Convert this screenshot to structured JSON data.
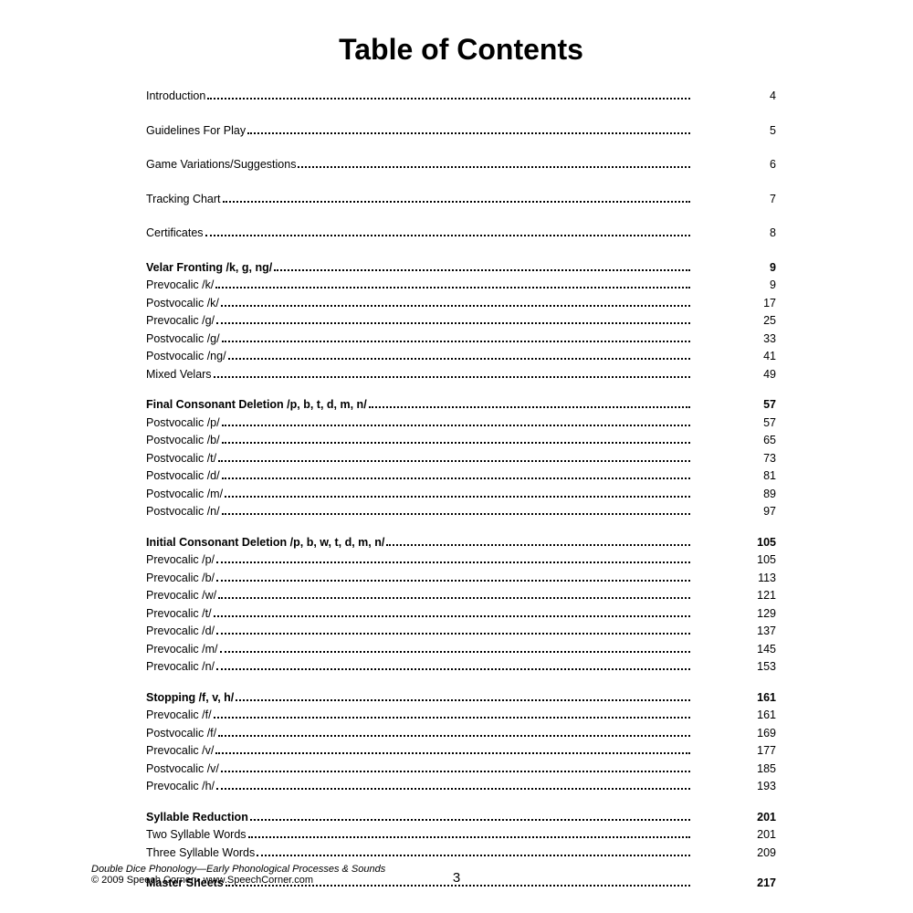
{
  "title": "Table of Contents",
  "sections": [
    {
      "items": [
        {
          "label": "Introduction",
          "page": "4",
          "bold": false,
          "spaced": true
        }
      ]
    },
    {
      "items": [
        {
          "label": "Guidelines For Play",
          "page": "5",
          "bold": false,
          "spaced": true
        }
      ]
    },
    {
      "items": [
        {
          "label": "Game Variations/Suggestions",
          "page": "6",
          "bold": false,
          "spaced": true
        }
      ]
    },
    {
      "items": [
        {
          "label": "Tracking Chart",
          "page": "7",
          "bold": false,
          "spaced": true
        }
      ]
    },
    {
      "items": [
        {
          "label": "Certificates",
          "page": "8",
          "bold": false,
          "spaced": true
        }
      ]
    },
    {
      "items": [
        {
          "label": "Velar Fronting /k, g, ng/",
          "page": "9",
          "bold": true
        },
        {
          "label": "Prevocalic /k/",
          "page": "9",
          "bold": false
        },
        {
          "label": "Postvocalic /k/",
          "page": "17",
          "bold": false
        },
        {
          "label": "Prevocalic /g/",
          "page": "25",
          "bold": false
        },
        {
          "label": "Postvocalic /g/",
          "page": "33",
          "bold": false
        },
        {
          "label": "Postvocalic /ng/",
          "page": "41",
          "bold": false
        },
        {
          "label": "Mixed Velars",
          "page": "49",
          "bold": false
        }
      ]
    },
    {
      "items": [
        {
          "label": "Final Consonant Deletion /p, b, t, d, m, n/",
          "page": "57",
          "bold": true
        },
        {
          "label": "Postvocalic /p/",
          "page": "57",
          "bold": false
        },
        {
          "label": "Postvocalic /b/",
          "page": "65",
          "bold": false
        },
        {
          "label": "Postvocalic /t/",
          "page": "73",
          "bold": false
        },
        {
          "label": "Postvocalic /d/",
          "page": "81",
          "bold": false
        },
        {
          "label": "Postvocalic /m/",
          "page": "89",
          "bold": false
        },
        {
          "label": "Postvocalic /n/",
          "page": "97",
          "bold": false
        }
      ]
    },
    {
      "items": [
        {
          "label": "Initial Consonant Deletion /p, b, w, t, d, m, n/",
          "page": "105",
          "bold": true
        },
        {
          "label": "Prevocalic /p/",
          "page": "105",
          "bold": false
        },
        {
          "label": "Prevocalic /b/",
          "page": "113",
          "bold": false
        },
        {
          "label": "Prevocalic /w/",
          "page": "121",
          "bold": false
        },
        {
          "label": "Prevocalic /t/",
          "page": "129",
          "bold": false
        },
        {
          "label": "Prevocalic /d/",
          "page": "137",
          "bold": false
        },
        {
          "label": "Prevocalic /m/",
          "page": "145",
          "bold": false
        },
        {
          "label": "Prevocalic /n/",
          "page": "153",
          "bold": false
        }
      ]
    },
    {
      "items": [
        {
          "label": "Stopping /f, v, h/",
          "page": "161",
          "bold": true
        },
        {
          "label": "Prevocalic /f/",
          "page": "161",
          "bold": false
        },
        {
          "label": "Postvocalic /f/",
          "page": "169",
          "bold": false
        },
        {
          "label": "Prevocalic /v/",
          "page": "177",
          "bold": false
        },
        {
          "label": "Postvocalic /v/",
          "page": "185",
          "bold": false
        },
        {
          "label": "Prevocalic /h/",
          "page": "193",
          "bold": false
        }
      ]
    },
    {
      "items": [
        {
          "label": "Syllable Reduction",
          "page": "201",
          "bold": true
        },
        {
          "label": "Two Syllable Words",
          "page": "201",
          "bold": false
        },
        {
          "label": "Three Syllable Words",
          "page": "209",
          "bold": false
        }
      ]
    },
    {
      "items": [
        {
          "label": "Master Sheets",
          "page": "217",
          "bold": true
        }
      ]
    }
  ],
  "footer": {
    "title": "Double Dice Phonology—Early Phonological Processes & Sounds",
    "copyright": "© 2009 Speech Corner • www.SpeechCorner.com"
  },
  "page_number": "3"
}
